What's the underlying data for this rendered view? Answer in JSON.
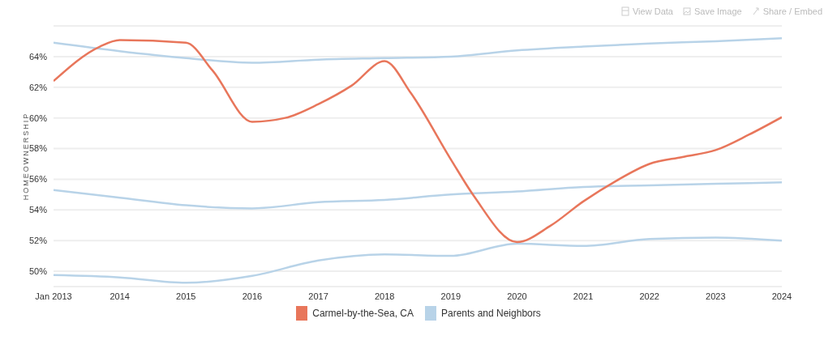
{
  "chart_data": {
    "type": "line",
    "ylabel": "HOMEOWNERSHIP",
    "annotations": [
      "View Data",
      "Save Image",
      "Share / Embed"
    ],
    "xlim": [
      2013,
      2024
    ],
    "xticks": [
      {
        "value": 2013,
        "label": "Jan 2013"
      },
      2014,
      2015,
      2016,
      2017,
      2018,
      2019,
      2020,
      2021,
      2022,
      2023,
      2024
    ],
    "ylim": [
      49,
      66
    ],
    "yticks": [
      {
        "value": 50,
        "label": "50%"
      },
      {
        "value": 52,
        "label": "52%"
      },
      {
        "value": 54,
        "label": "54%"
      },
      {
        "value": 56,
        "label": "56%"
      },
      {
        "value": 58,
        "label": "58%"
      },
      {
        "value": 60,
        "label": "60%"
      },
      {
        "value": 62,
        "label": "62%"
      },
      {
        "value": 64,
        "label": "64%"
      }
    ],
    "grid": "y",
    "legend": "bottom",
    "marker": "none",
    "line_style": "solid",
    "series": [
      {
        "name": "Carmel-by-the-Sea, CA",
        "color": "#e8765b",
        "x": [
          2013,
          2013.7,
          2014,
          2015,
          2015.4,
          2016,
          2016.5,
          2017,
          2017.5,
          2018,
          2018.4,
          2019,
          2019.35,
          2020,
          2020.5,
          2021,
          2021.5,
          2022,
          2022.5,
          2023,
          2023.5,
          2024
        ],
        "values": [
          62.4,
          64.65,
          65.07,
          64.9,
          63.1,
          59.75,
          60.0,
          60.9,
          62.1,
          63.7,
          61.6,
          57.3,
          54.9,
          51.9,
          52.95,
          54.55,
          55.9,
          57.0,
          57.45,
          57.9,
          58.9,
          60.05
        ]
      },
      {
        "name": "Parents and Neighbors",
        "color": "#b8d3e8",
        "x": [
          2013,
          2014,
          2015,
          2016,
          2017,
          2018,
          2019,
          2020,
          2021,
          2022,
          2023,
          2024
        ],
        "values": [
          64.9,
          64.35,
          63.9,
          63.6,
          63.8,
          63.9,
          64.0,
          64.4,
          64.65,
          64.85,
          65.0,
          65.2
        ]
      },
      {
        "color": "#b8d3e8",
        "x": [
          2013,
          2014,
          2015,
          2016,
          2017,
          2018,
          2019,
          2020,
          2021,
          2022,
          2023,
          2024
        ],
        "values": [
          55.3,
          54.8,
          54.3,
          54.1,
          54.5,
          54.65,
          55.0,
          55.2,
          55.5,
          55.6,
          55.7,
          55.8
        ]
      },
      {
        "color": "#b8d3e8",
        "x": [
          2013,
          2014,
          2015,
          2016,
          2017,
          2018,
          2019,
          2020,
          2021,
          2022,
          2023,
          2024
        ],
        "values": [
          49.75,
          49.6,
          49.25,
          49.7,
          50.7,
          51.1,
          51.0,
          51.8,
          51.65,
          52.1,
          52.2,
          52.0
        ]
      }
    ]
  }
}
